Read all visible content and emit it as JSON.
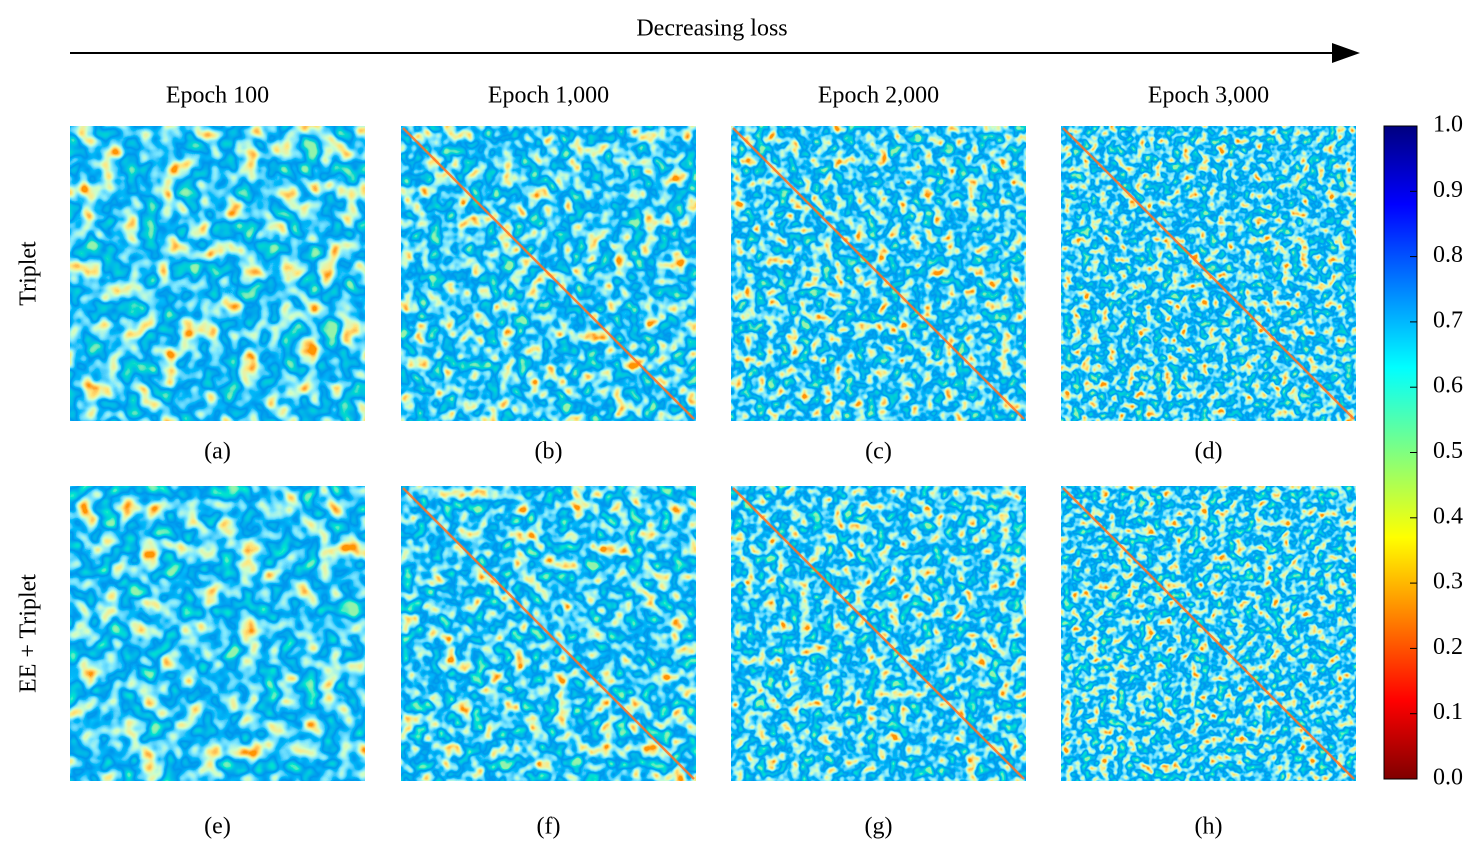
{
  "header": "Decreasing loss",
  "columns": [
    "Epoch 100",
    "Epoch 1,000",
    "Epoch 2,000",
    "Epoch 3,000"
  ],
  "rows": [
    "Triplet",
    "EE + Triplet"
  ],
  "panels": [
    "(a)",
    "(b)",
    "(c)",
    "(d)",
    "(e)",
    "(f)",
    "(g)",
    "(h)"
  ],
  "colorbar": {
    "lim": [
      0,
      1
    ],
    "ticks": [
      {
        "value": 0,
        "label": "0.0"
      },
      {
        "value": 0.1,
        "label": "0.1"
      },
      {
        "value": 0.2,
        "label": "0.2"
      },
      {
        "value": 0.3,
        "label": "0.3"
      },
      {
        "value": 0.4,
        "label": "0.4"
      },
      {
        "value": 0.5,
        "label": "0.5"
      },
      {
        "value": 0.6,
        "label": "0.6"
      },
      {
        "value": 0.7,
        "label": "0.7"
      },
      {
        "value": 0.8,
        "label": "0.8"
      },
      {
        "value": 0.9,
        "label": "0.9"
      },
      {
        "value": 1,
        "label": "1.0"
      }
    ]
  }
}
